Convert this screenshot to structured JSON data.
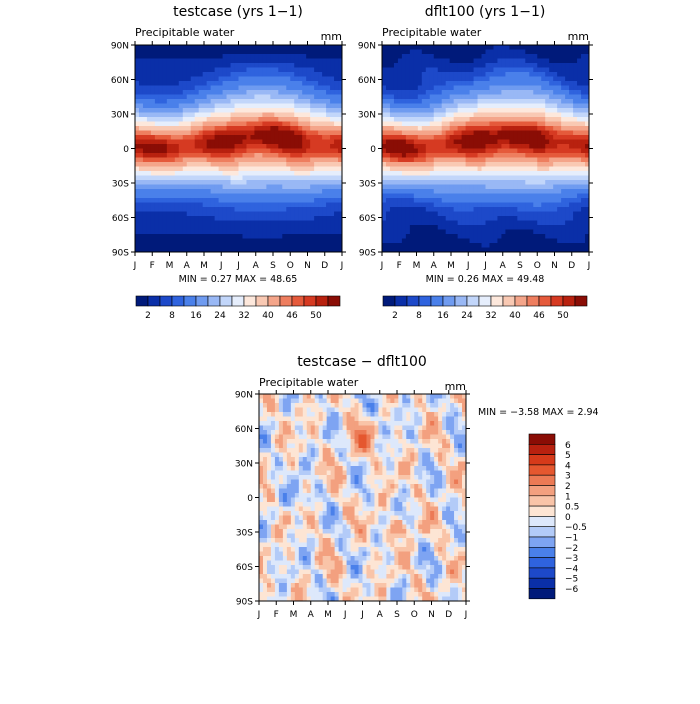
{
  "colors": {
    "seq": [
      "#001a7a",
      "#0a2fa8",
      "#1d49c9",
      "#2f63de",
      "#4a80ea",
      "#6f9bf0",
      "#99b8f5",
      "#c2d6fa",
      "#e6eefc",
      "#fde8dc",
      "#f9c9b3",
      "#f4a58a",
      "#ee7e5f",
      "#e55a3b",
      "#d63a22",
      "#b8210f",
      "#8a0d05"
    ],
    "diff": [
      "#001a7a",
      "#0a2fa8",
      "#1d49c9",
      "#2f63de",
      "#4a80ea",
      "#7ea4f2",
      "#b3cbf8",
      "#dde8fb",
      "#fde5d4",
      "#f9c4a8",
      "#f3a07f",
      "#ec7a55",
      "#e5572f",
      "#d63a1a",
      "#b8210f",
      "#8a0d05"
    ]
  },
  "chart_data": [
    {
      "type": "heatmap",
      "title": "testcase (yrs 1−1)",
      "left_label": "Precipitable water",
      "units": "mm",
      "xlabels": [
        "J",
        "F",
        "M",
        "A",
        "M",
        "J",
        "J",
        "A",
        "S",
        "O",
        "N",
        "D",
        "J"
      ],
      "ylabels": [
        "90N",
        "60N",
        "30N",
        "0",
        "30S",
        "60S",
        "90S"
      ],
      "stats": "MIN =    0.27 MAX =    48.65",
      "min": 0.27,
      "max": 48.65,
      "colorbar_labels": [
        "2",
        "8",
        "16",
        "24",
        "32",
        "40",
        "46",
        "50"
      ]
    },
    {
      "type": "heatmap",
      "title": "dflt100 (yrs 1−1)",
      "left_label": "Precipitable water",
      "units": "mm",
      "xlabels": [
        "J",
        "F",
        "M",
        "A",
        "M",
        "J",
        "J",
        "A",
        "S",
        "O",
        "N",
        "D",
        "J"
      ],
      "ylabels": [
        "90N",
        "60N",
        "30N",
        "0",
        "30S",
        "60S",
        "90S"
      ],
      "stats": "MIN =    0.26 MAX =    49.48",
      "min": 0.26,
      "max": 49.48,
      "colorbar_labels": [
        "2",
        "8",
        "16",
        "24",
        "32",
        "40",
        "46",
        "50"
      ]
    },
    {
      "type": "heatmap",
      "title": "testcase − dflt100",
      "left_label": "Precipitable water",
      "units": "mm",
      "xlabels": [
        "J",
        "F",
        "M",
        "A",
        "M",
        "J",
        "J",
        "A",
        "S",
        "O",
        "N",
        "D",
        "J"
      ],
      "ylabels": [
        "90N",
        "60N",
        "30N",
        "0",
        "30S",
        "60S",
        "90S"
      ],
      "stats": "MIN =  −3.58 MAX =    2.94",
      "min": -3.58,
      "max": 2.94,
      "colorbar_labels": [
        "6",
        "5",
        "4",
        "3",
        "2",
        "1",
        "0.5",
        "0",
        "−0.5",
        "−1",
        "−2",
        "−3",
        "−4",
        "−5",
        "−6"
      ]
    }
  ]
}
